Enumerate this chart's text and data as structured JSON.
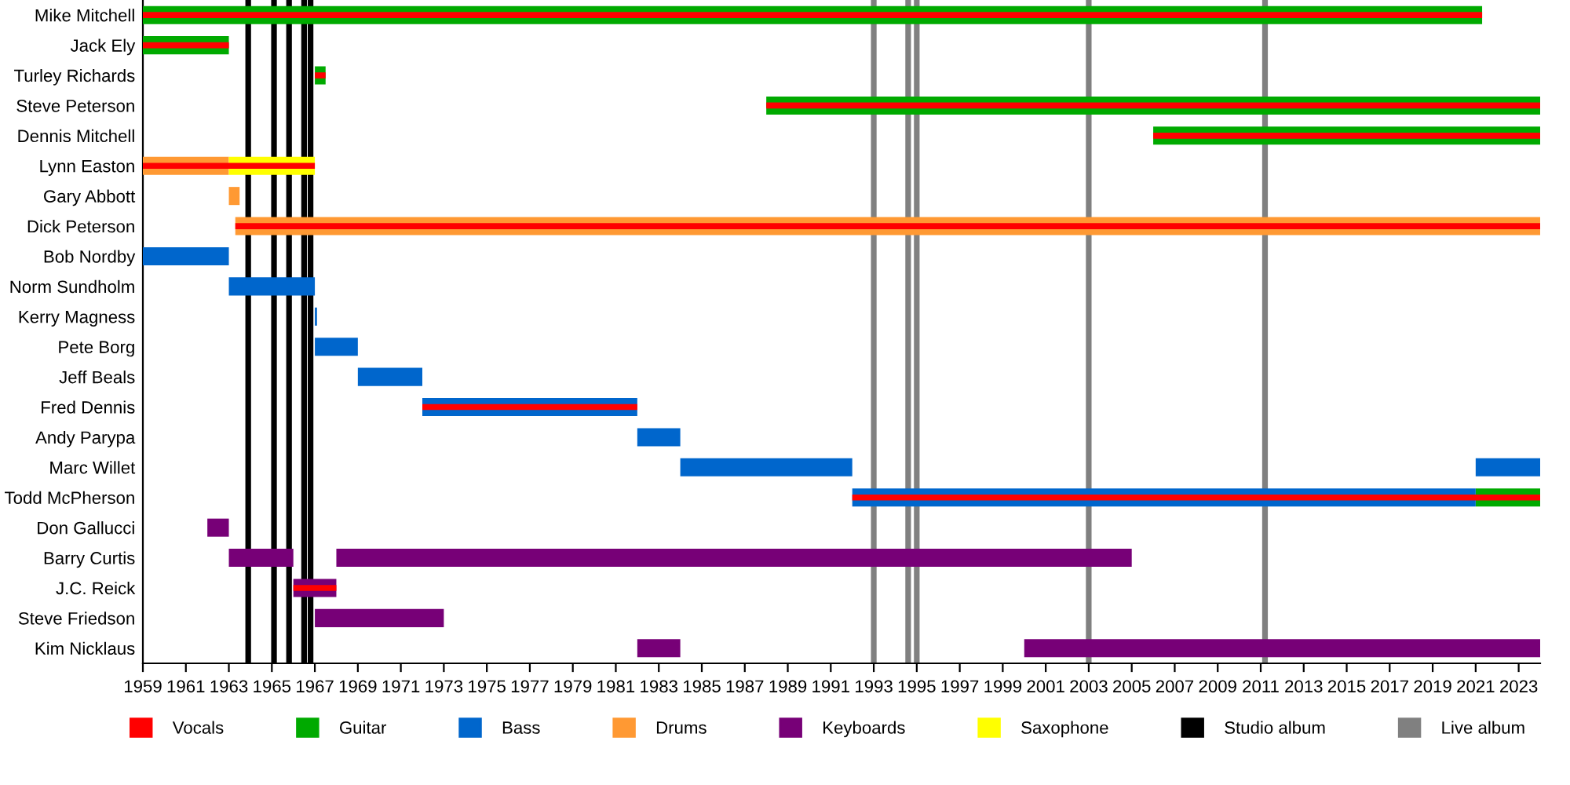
{
  "chart_data": {
    "type": "bar",
    "orientation": "horizontal",
    "categories": [
      "Mike Mitchell",
      "Jack Ely",
      "Turley Richards",
      "Steve Peterson",
      "Dennis Mitchell",
      "Lynn Easton",
      "Gary Abbott",
      "Dick Peterson",
      "Bob Nordby",
      "Norm Sundholm",
      "Kerry Magness",
      "Pete Borg",
      "Jeff Beals",
      "Fred Dennis",
      "Andy Parypa",
      "Marc Willet",
      "Todd McPherson",
      "Don Gallucci",
      "Barry Curtis",
      "J.C. Reick",
      "Steve Friedson",
      "Kim Nicklaus"
    ],
    "series": [
      {
        "name": "Vocals",
        "color": "#ff0000",
        "base": [
          1959,
          1959,
          1967,
          1988,
          2006,
          1959,
          null,
          1963.3,
          null,
          null,
          null,
          null,
          null,
          1972,
          null,
          null,
          1992,
          null,
          null,
          1966,
          null,
          null
        ],
        "values": [
          62.3,
          4,
          0.5,
          36,
          18,
          8,
          null,
          60.7,
          null,
          null,
          null,
          null,
          null,
          10,
          null,
          null,
          32,
          null,
          null,
          2,
          null,
          null
        ]
      },
      {
        "name": "Guitar",
        "color": "#00aa00",
        "base": [
          1959,
          1959,
          1967,
          1988,
          2006,
          null,
          null,
          null,
          null,
          null,
          null,
          null,
          null,
          null,
          null,
          null,
          2021,
          null,
          null,
          null,
          null,
          null
        ],
        "values": [
          62.3,
          4,
          0.5,
          36,
          18,
          null,
          null,
          null,
          null,
          null,
          null,
          null,
          null,
          null,
          null,
          null,
          3,
          null,
          null,
          null,
          null,
          null
        ]
      },
      {
        "name": "Bass",
        "color": "#0066cc",
        "base": [
          null,
          null,
          null,
          null,
          null,
          null,
          null,
          null,
          1959,
          1963,
          1967,
          1967,
          1969,
          1972,
          1982,
          1984,
          1992,
          null,
          null,
          null,
          null,
          null
        ],
        "values": [
          null,
          null,
          null,
          null,
          null,
          null,
          null,
          null,
          4,
          4,
          0.1,
          2,
          3,
          10,
          2,
          8,
          29,
          null,
          null,
          null,
          null,
          null
        ]
      },
      {
        "color": "#0066cc",
        "base": [
          null,
          null,
          null,
          null,
          null,
          null,
          null,
          null,
          null,
          null,
          null,
          null,
          null,
          null,
          null,
          2021,
          null,
          null,
          null,
          null,
          null,
          null
        ],
        "values": [
          null,
          null,
          null,
          null,
          null,
          null,
          null,
          null,
          null,
          null,
          null,
          null,
          null,
          null,
          null,
          3,
          null,
          null,
          null,
          null,
          null,
          null
        ]
      },
      {
        "name": "Drums",
        "color": "#ff9933",
        "base": [
          null,
          null,
          null,
          null,
          null,
          1959,
          1963,
          1963.3,
          null,
          null,
          null,
          null,
          null,
          null,
          null,
          null,
          null,
          null,
          null,
          null,
          null,
          null
        ],
        "values": [
          null,
          null,
          null,
          null,
          null,
          4,
          0.5,
          60.7,
          null,
          null,
          null,
          null,
          null,
          null,
          null,
          null,
          null,
          null,
          null,
          null,
          null,
          null
        ]
      },
      {
        "name": "Keyboards",
        "color": "#770077",
        "base": [
          null,
          null,
          null,
          null,
          null,
          null,
          null,
          null,
          null,
          null,
          null,
          null,
          null,
          null,
          null,
          null,
          null,
          1962,
          1963,
          1966,
          1967,
          1982
        ],
        "values": [
          null,
          null,
          null,
          null,
          null,
          null,
          null,
          null,
          null,
          null,
          null,
          null,
          null,
          null,
          null,
          null,
          null,
          1,
          3,
          2,
          6,
          2
        ]
      },
      {
        "color": "#770077",
        "base": [
          null,
          null,
          null,
          null,
          null,
          null,
          null,
          null,
          null,
          null,
          null,
          null,
          null,
          null,
          null,
          null,
          null,
          null,
          1968,
          null,
          null,
          2000
        ],
        "values": [
          null,
          null,
          null,
          null,
          null,
          null,
          null,
          null,
          null,
          null,
          null,
          null,
          null,
          null,
          null,
          null,
          null,
          null,
          37,
          null,
          null,
          24
        ]
      },
      {
        "name": "Saxophone",
        "color": "#ffff00",
        "base": [
          null,
          null,
          null,
          null,
          null,
          1963,
          null,
          null,
          null,
          null,
          null,
          null,
          null,
          null,
          null,
          null,
          null,
          null,
          null,
          null,
          null,
          null
        ],
        "values": [
          null,
          null,
          null,
          null,
          null,
          4,
          null,
          null,
          null,
          null,
          null,
          null,
          null,
          null,
          null,
          null,
          null,
          null,
          null,
          null,
          null,
          null
        ]
      }
    ],
    "ref_lines": [
      {
        "axis": "x",
        "value": 1963.9,
        "label": "Studio album",
        "color": "#000000"
      },
      {
        "axis": "x",
        "value": 1965.1,
        "color": "#000000"
      },
      {
        "axis": "x",
        "value": 1965.8,
        "color": "#000000"
      },
      {
        "axis": "x",
        "value": 1966.5,
        "color": "#000000"
      },
      {
        "axis": "x",
        "value": 1966.8,
        "color": "#000000"
      },
      {
        "axis": "x",
        "value": 1993,
        "label": "Live album",
        "color": "#808080"
      },
      {
        "axis": "x",
        "value": 1994.6,
        "color": "#808080"
      },
      {
        "axis": "x",
        "value": 1995,
        "color": "#808080"
      },
      {
        "axis": "x",
        "value": 2003,
        "color": "#808080"
      },
      {
        "axis": "x",
        "value": 2011.2,
        "color": "#808080"
      }
    ],
    "xlim": [
      1959,
      2024
    ],
    "xticks": [
      1959,
      1961,
      1963,
      1965,
      1967,
      1969,
      1971,
      1973,
      1975,
      1977,
      1979,
      1981,
      1983,
      1985,
      1987,
      1989,
      1991,
      1993,
      1995,
      1997,
      1999,
      2001,
      2003,
      2005,
      2007,
      2009,
      2011,
      2013,
      2015,
      2017,
      2019,
      2021,
      2023
    ],
    "grid": false,
    "legend": "bottom"
  }
}
